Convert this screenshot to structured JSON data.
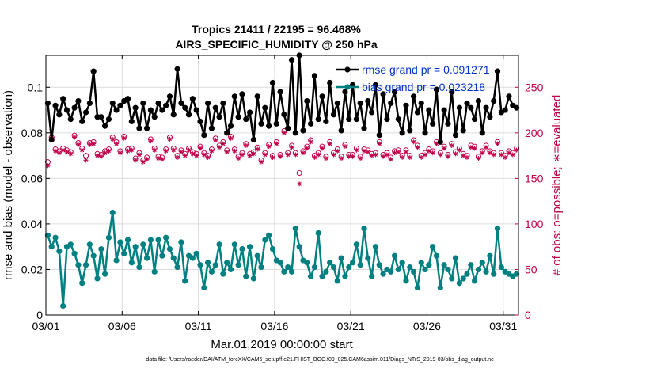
{
  "chart_data": {
    "type": "line",
    "title": "Tropics 21411 / 22195 = 96.468%",
    "subtitle": "AIRS_SPECIFIC_HUMIDITY @ 250 hPa",
    "xlabel": "Mar.01,2019 00:00:00 start",
    "ylabel": "rmse and bias (model - observation)",
    "ylabel_right": "# of obs: o=possible; ∗=evaluated",
    "footer": "data file: /Users/raeder/DAI/ATM_forcXX/CAM6_setup/f.e21.FHIST_BGC.f09_025.CAM6assim.011/Diags_NTrS_2019-03/obs_diag_output.nc",
    "x_tick_labels": [
      "03/01",
      "03/06",
      "03/11",
      "03/16",
      "03/21",
      "03/26",
      "03/31"
    ],
    "x_tick_values": [
      0,
      5,
      10,
      15,
      20,
      25,
      30
    ],
    "xlim": [
      0,
      31
    ],
    "ylim": [
      0,
      0.114
    ],
    "y_tick_labels": [
      "0",
      "0.02",
      "0.04",
      "0.06",
      "0.08",
      "0.1"
    ],
    "y_tick_values": [
      0,
      0.02,
      0.04,
      0.06,
      0.08,
      0.1
    ],
    "ylim_right": [
      0,
      285
    ],
    "y2_tick_labels": [
      "0",
      "50",
      "100",
      "150",
      "200",
      "250"
    ],
    "y2_tick_values": [
      0,
      50,
      100,
      150,
      200,
      250
    ],
    "legend": [
      {
        "label": "rmse grand pr = 0.091271",
        "color": "#000000"
      },
      {
        "label": "bias grand pr = 0.023218",
        "color": "#008080"
      }
    ],
    "colors": {
      "rmse": "#000000",
      "bias": "#008080",
      "obs": "#c0004a",
      "grid": "#dcdcdc"
    },
    "series": [
      {
        "name": "rmse",
        "x": [
          0.125,
          0.375,
          0.625,
          0.875,
          1.125,
          1.375,
          1.625,
          1.875,
          2.125,
          2.375,
          2.625,
          2.875,
          3.125,
          3.375,
          3.625,
          3.875,
          4.125,
          4.375,
          4.625,
          4.875,
          5.125,
          5.375,
          5.625,
          5.875,
          6.125,
          6.375,
          6.625,
          6.875,
          7.125,
          7.375,
          7.625,
          7.875,
          8.125,
          8.375,
          8.625,
          8.875,
          9.125,
          9.375,
          9.625,
          9.875,
          10.125,
          10.375,
          10.625,
          10.875,
          11.125,
          11.375,
          11.625,
          11.875,
          12.125,
          12.375,
          12.625,
          12.875,
          13.125,
          13.375,
          13.625,
          13.875,
          14.125,
          14.375,
          14.625,
          14.875,
          15.125,
          15.375,
          15.625,
          15.875,
          16.125,
          16.375,
          16.625,
          16.875,
          17.125,
          17.375,
          17.625,
          17.875,
          18.125,
          18.375,
          18.625,
          18.875,
          19.125,
          19.375,
          19.625,
          19.875,
          20.125,
          20.375,
          20.625,
          20.875,
          21.125,
          21.375,
          21.625,
          21.875,
          22.125,
          22.375,
          22.625,
          22.875,
          23.125,
          23.375,
          23.625,
          23.875,
          24.125,
          24.375,
          24.625,
          24.875,
          25.125,
          25.375,
          25.625,
          25.875,
          26.125,
          26.375,
          26.625,
          26.875,
          27.125,
          27.375,
          27.625,
          27.875,
          28.125,
          28.375,
          28.625,
          28.875,
          29.125,
          29.375,
          29.625,
          29.875,
          30.125,
          30.375,
          30.625,
          30.875
        ],
        "values": [
          0.093,
          0.077,
          0.092,
          0.088,
          0.095,
          0.09,
          0.086,
          0.091,
          0.094,
          0.085,
          0.089,
          0.093,
          0.107,
          0.087,
          0.087,
          0.083,
          0.086,
          0.093,
          0.09,
          0.092,
          0.094,
          0.095,
          0.085,
          0.091,
          0.082,
          0.093,
          0.082,
          0.09,
          0.087,
          0.093,
          0.09,
          0.092,
          0.096,
          0.088,
          0.108,
          0.093,
          0.091,
          0.088,
          0.095,
          0.09,
          0.085,
          0.079,
          0.093,
          0.082,
          0.091,
          0.087,
          0.093,
          0.08,
          0.083,
          0.096,
          0.087,
          0.097,
          0.086,
          0.089,
          0.077,
          0.096,
          0.084,
          0.091,
          0.083,
          0.102,
          0.084,
          0.098,
          0.088,
          0.082,
          0.112,
          0.08,
          0.114,
          0.081,
          0.094,
          0.084,
          0.105,
          0.086,
          0.096,
          0.085,
          0.102,
          0.088,
          0.093,
          0.081,
          0.098,
          0.086,
          0.101,
          0.086,
          0.093,
          0.082,
          0.094,
          0.089,
          0.101,
          0.079,
          0.097,
          0.086,
          0.093,
          0.098,
          0.086,
          0.08,
          0.092,
          0.081,
          0.096,
          0.089,
          0.093,
          0.08,
          0.09,
          0.084,
          0.099,
          0.076,
          0.09,
          0.084,
          0.098,
          0.079,
          0.091,
          0.081,
          0.093,
          0.091,
          0.086,
          0.094,
          0.08,
          0.091,
          0.087,
          0.094,
          0.107,
          0.089,
          0.09,
          0.096,
          0.092,
          0.091
        ]
      },
      {
        "name": "bias",
        "x": [
          0.125,
          0.375,
          0.625,
          0.875,
          1.125,
          1.375,
          1.625,
          1.875,
          2.125,
          2.375,
          2.625,
          2.875,
          3.125,
          3.375,
          3.625,
          3.875,
          4.125,
          4.375,
          4.625,
          4.875,
          5.125,
          5.375,
          5.625,
          5.875,
          6.125,
          6.375,
          6.625,
          6.875,
          7.125,
          7.375,
          7.625,
          7.875,
          8.125,
          8.375,
          8.625,
          8.875,
          9.125,
          9.375,
          9.625,
          9.875,
          10.125,
          10.375,
          10.625,
          10.875,
          11.125,
          11.375,
          11.625,
          11.875,
          12.125,
          12.375,
          12.625,
          12.875,
          13.125,
          13.375,
          13.625,
          13.875,
          14.125,
          14.375,
          14.625,
          14.875,
          15.125,
          15.375,
          15.625,
          15.875,
          16.125,
          16.375,
          16.625,
          16.875,
          17.125,
          17.375,
          17.625,
          17.875,
          18.125,
          18.375,
          18.625,
          18.875,
          19.125,
          19.375,
          19.625,
          19.875,
          20.125,
          20.375,
          20.625,
          20.875,
          21.125,
          21.375,
          21.625,
          21.875,
          22.125,
          22.375,
          22.625,
          22.875,
          23.125,
          23.375,
          23.625,
          23.875,
          24.125,
          24.375,
          24.625,
          24.875,
          25.125,
          25.375,
          25.625,
          25.875,
          26.125,
          26.375,
          26.625,
          26.875,
          27.125,
          27.375,
          27.625,
          27.875,
          28.125,
          28.375,
          28.625,
          28.875,
          29.125,
          29.375,
          29.625,
          29.875,
          30.125,
          30.375,
          30.625,
          30.875
        ],
        "values": [
          0.035,
          0.03,
          0.034,
          0.028,
          0.004,
          0.03,
          0.031,
          0.027,
          0.022,
          0.014,
          0.022,
          0.031,
          0.026,
          0.016,
          0.029,
          0.018,
          0.034,
          0.045,
          0.024,
          0.032,
          0.027,
          0.033,
          0.023,
          0.03,
          0.021,
          0.031,
          0.025,
          0.033,
          0.019,
          0.033,
          0.026,
          0.034,
          0.029,
          0.025,
          0.021,
          0.032,
          0.015,
          0.026,
          0.025,
          0.027,
          0.022,
          0.012,
          0.023,
          0.019,
          0.022,
          0.031,
          0.018,
          0.023,
          0.02,
          0.031,
          0.022,
          0.029,
          0.017,
          0.03,
          0.016,
          0.026,
          0.021,
          0.033,
          0.035,
          0.029,
          0.024,
          0.023,
          0.019,
          0.021,
          0.019,
          0.038,
          0.03,
          0.024,
          0.023,
          0.017,
          0.021,
          0.036,
          0.017,
          0.019,
          0.023,
          0.021,
          0.015,
          0.025,
          0.017,
          0.021,
          0.023,
          0.031,
          0.022,
          0.038,
          0.025,
          0.017,
          0.03,
          0.022,
          0.018,
          0.02,
          0.019,
          0.026,
          0.02,
          0.023,
          0.015,
          0.021,
          0.019,
          0.012,
          0.023,
          0.02,
          0.022,
          0.03,
          0.026,
          0.012,
          0.022,
          0.02,
          0.016,
          0.025,
          0.014,
          0.016,
          0.018,
          0.022,
          0.015,
          0.02,
          0.023,
          0.019,
          0.026,
          0.018,
          0.038,
          0.021,
          0.019,
          0.018,
          0.017,
          0.018
        ]
      },
      {
        "name": "obs_possible",
        "axis": "right",
        "values": [
          168,
          195,
          182,
          180,
          183,
          181,
          179,
          197,
          189,
          183,
          175,
          189,
          190,
          177,
          176,
          180,
          182,
          195,
          190,
          180,
          196,
          182,
          183,
          172,
          178,
          170,
          173,
          193,
          183,
          174,
          173,
          182,
          195,
          183,
          175,
          181,
          177,
          183,
          179,
          177,
          185,
          178,
          175,
          182,
          194,
          186,
          190,
          181,
          196,
          182,
          174,
          178,
          188,
          177,
          179,
          184,
          170,
          178,
          187,
          175,
          190,
          176,
          202,
          178,
          186,
          178,
          156,
          180,
          185,
          192,
          175,
          178,
          185,
          174,
          190,
          178,
          182,
          174,
          187,
          176,
          176,
          183,
          174,
          182,
          181,
          177,
          178,
          190,
          176,
          178,
          173,
          180,
          181,
          175,
          181,
          175,
          192,
          186,
          175,
          178,
          182,
          180,
          190,
          178,
          185,
          176,
          188,
          179,
          183,
          177,
          175,
          186,
          185,
          174,
          180,
          186,
          180,
          178,
          190,
          178,
          175,
          180,
          178,
          183
        ]
      },
      {
        "name": "obs_evaluated",
        "axis": "right",
        "values": [
          164,
          195,
          180,
          178,
          181,
          179,
          177,
          195,
          187,
          181,
          170,
          187,
          188,
          175,
          174,
          178,
          180,
          193,
          188,
          178,
          194,
          180,
          181,
          170,
          176,
          168,
          171,
          191,
          181,
          172,
          171,
          180,
          193,
          181,
          173,
          179,
          175,
          181,
          177,
          175,
          183,
          176,
          173,
          180,
          192,
          184,
          188,
          179,
          194,
          180,
          172,
          176,
          186,
          175,
          177,
          182,
          168,
          176,
          185,
          173,
          188,
          174,
          200,
          176,
          184,
          176,
          144,
          178,
          183,
          190,
          173,
          176,
          183,
          172,
          188,
          176,
          180,
          172,
          185,
          174,
          174,
          181,
          172,
          180,
          179,
          175,
          176,
          188,
          174,
          176,
          171,
          178,
          179,
          173,
          179,
          173,
          190,
          184,
          173,
          176,
          180,
          178,
          188,
          176,
          183,
          174,
          186,
          177,
          181,
          175,
          173,
          184,
          183,
          172,
          178,
          184,
          178,
          176,
          188,
          176,
          173,
          178,
          176,
          181
        ]
      }
    ]
  }
}
